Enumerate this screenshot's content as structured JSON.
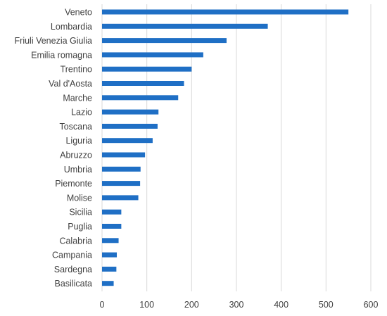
{
  "chart_data": {
    "type": "bar",
    "orientation": "horizontal",
    "categories": [
      "Veneto",
      "Lombardia",
      "Friuli Venezia Giulia",
      "Emilia romagna",
      "Trentino",
      "Val d'Aosta",
      "Marche",
      "Lazio",
      "Toscana",
      "Liguria",
      "Abruzzo",
      "Umbria",
      "Piemonte",
      "Molise",
      "Sicilia",
      "Puglia",
      "Calabria",
      "Campania",
      "Sardegna",
      "Basilicata"
    ],
    "values": [
      550,
      370,
      278,
      226,
      200,
      183,
      170,
      126,
      124,
      113,
      96,
      86,
      85,
      81,
      43,
      43,
      37,
      33,
      32,
      26
    ],
    "xlim": [
      0,
      600
    ],
    "xticks": [
      0,
      100,
      200,
      300,
      400,
      500,
      600
    ],
    "title": "",
    "xlabel": "",
    "ylabel": "",
    "grid": "vertical",
    "legend": "none",
    "bar_color": "#1f6fc5"
  }
}
